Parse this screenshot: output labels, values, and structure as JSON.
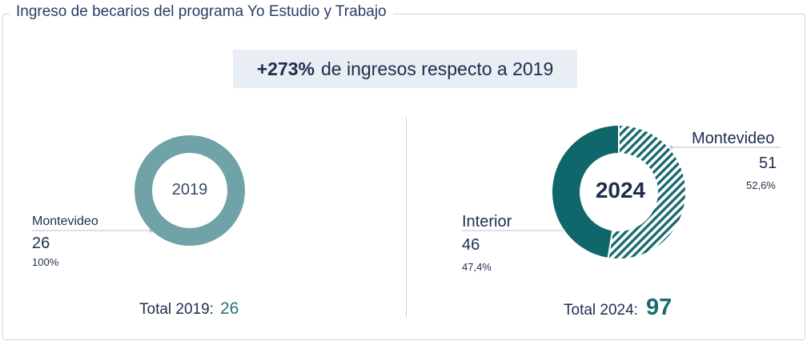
{
  "title": "Ingreso de becarios del programa Yo Estudio y Trabajo",
  "banner": {
    "bold": "+273%",
    "text": "de ingresos respecto a 2019"
  },
  "colors": {
    "accent_2019": "#6fa3a8",
    "accent_2024": "#0f666b",
    "text": "#1f2d4d"
  },
  "left": {
    "center_label": "2019",
    "montevideo": {
      "name": "Montevideo",
      "value": "26",
      "pct": "100%"
    },
    "total_label": "Total 2019:",
    "total_value": "26"
  },
  "right": {
    "center_label": "2024",
    "montevideo": {
      "name": "Montevideo",
      "value": "51",
      "pct": "52,6%"
    },
    "interior": {
      "name": "Interior",
      "value": "46",
      "pct": "47,4%"
    },
    "total_label": "Total 2024:",
    "total_value": "97"
  },
  "chart_data": [
    {
      "type": "pie",
      "title": "2019",
      "categories": [
        "Montevideo"
      ],
      "values": [
        26
      ],
      "percent_labels": [
        "100%"
      ]
    },
    {
      "type": "pie",
      "title": "2024",
      "categories": [
        "Montevideo",
        "Interior"
      ],
      "values": [
        51,
        46
      ],
      "percent_labels": [
        "52,6%",
        "47,4%"
      ]
    }
  ]
}
